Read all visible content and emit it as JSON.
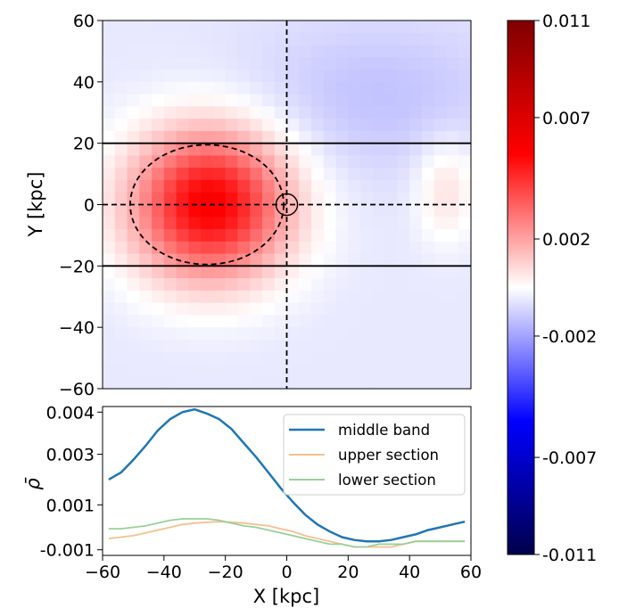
{
  "chart_data": [
    {
      "type": "heatmap",
      "title": "",
      "xlabel": "",
      "ylabel": "Y [kpc]",
      "xlim": [
        -60,
        60
      ],
      "ylim": [
        -60,
        60
      ],
      "y_ticks": [
        "60",
        "40",
        "20",
        "0",
        "−20",
        "−40",
        "−60"
      ],
      "y_tick_values": [
        60,
        40,
        20,
        0,
        -20,
        -40,
        -60
      ],
      "grid": false,
      "field": {
        "description_model": "sum of gaussian blobs in data units",
        "base": -0.0005,
        "blobs": [
          {
            "x": -25,
            "y": 0,
            "sx": 18,
            "sy": 17,
            "amp": 0.0062
          },
          {
            "x": 52,
            "y": 5,
            "sx": 7,
            "sy": 12,
            "amp": 0.0012
          },
          {
            "x": 30,
            "y": 35,
            "sx": 30,
            "sy": 18,
            "amp": -0.0008
          }
        ]
      },
      "overlays": {
        "horizontal_solid_lines_y": [
          20,
          -20
        ],
        "horizontal_dashed_line_y": 0,
        "vertical_dashed_line_x": 0,
        "dashed_ellipse": {
          "cx": -26,
          "cy": 0,
          "rx": 25,
          "ry": 19.5
        },
        "small_circle": {
          "cx": 0,
          "cy": 0,
          "r": 3.5
        }
      }
    },
    {
      "type": "line",
      "xlabel": "X [kpc]",
      "ylabel": "ρ̄",
      "xlim": [
        -60,
        60
      ],
      "ylim": [
        -0.0011,
        0.0042
      ],
      "x_ticks": [
        "−60",
        "−40",
        "−20",
        "0",
        "20",
        "40",
        "60"
      ],
      "x_tick_values": [
        -60,
        -40,
        -20,
        0,
        20,
        40,
        60
      ],
      "y_ticks": [
        "0.004",
        "0.003",
        "0.001",
        "-0.001"
      ],
      "y_tick_values": [
        0.004,
        0.0025,
        0.0007,
        -0.0009
      ],
      "legend_position": "top-right",
      "x": [
        -58,
        -54,
        -50,
        -46,
        -42,
        -38,
        -34,
        -30,
        -26,
        -22,
        -18,
        -14,
        -10,
        -6,
        -2,
        2,
        6,
        10,
        14,
        18,
        22,
        26,
        30,
        34,
        38,
        42,
        46,
        50,
        54,
        58
      ],
      "series": [
        {
          "name": "middle band",
          "color": "#1f77b4",
          "values": [
            0.0016,
            0.00185,
            0.0023,
            0.0028,
            0.00335,
            0.00375,
            0.004,
            0.0041,
            0.00395,
            0.00375,
            0.0034,
            0.0029,
            0.0024,
            0.00185,
            0.0013,
            0.0008,
            0.00035,
            0.0,
            -0.00025,
            -0.00045,
            -0.00055,
            -0.0006,
            -0.0006,
            -0.00055,
            -0.00045,
            -0.00035,
            -0.0002,
            -0.0001,
            0.0,
            0.0001
          ]
        },
        {
          "name": "upper section",
          "color": "#f5c08f",
          "values": [
            -0.0005,
            -0.00045,
            -0.0004,
            -0.0003,
            -0.0002,
            -0.0001,
            0.0,
            5e-05,
            8e-05,
            0.0001,
            8e-05,
            5e-05,
            0.0,
            -5e-05,
            -0.00015,
            -0.00025,
            -0.0004,
            -0.0005,
            -0.0006,
            -0.0007,
            -0.0008,
            -0.0008,
            -0.0008,
            -0.0008,
            -0.0007,
            -0.0006,
            -0.0006,
            -0.0006,
            -0.0006,
            -0.0006
          ]
        },
        {
          "name": "lower section",
          "color": "#99d099",
          "values": [
            -0.00015,
            -0.00015,
            -0.0001,
            -5e-05,
            5e-05,
            0.00015,
            0.0002,
            0.0002,
            0.0002,
            0.00015,
            5e-05,
            -5e-05,
            -0.0001,
            -0.0002,
            -0.0003,
            -0.0004,
            -0.0005,
            -0.0006,
            -0.0007,
            -0.0007,
            -0.0008,
            -0.0008,
            -0.0007,
            -0.0007,
            -0.0007,
            -0.0006,
            -0.0006,
            -0.0006,
            -0.0006,
            -0.0006
          ]
        }
      ]
    },
    {
      "type": "colorbar",
      "vmin": -0.011,
      "vmax": 0.011,
      "colormap": "seismic",
      "ticks": [
        "0.011",
        "0.007",
        "0.002",
        "-0.002",
        "-0.007",
        "-0.011"
      ],
      "tick_values": [
        0.011,
        0.007,
        0.002,
        -0.002,
        -0.007,
        -0.011
      ]
    }
  ]
}
